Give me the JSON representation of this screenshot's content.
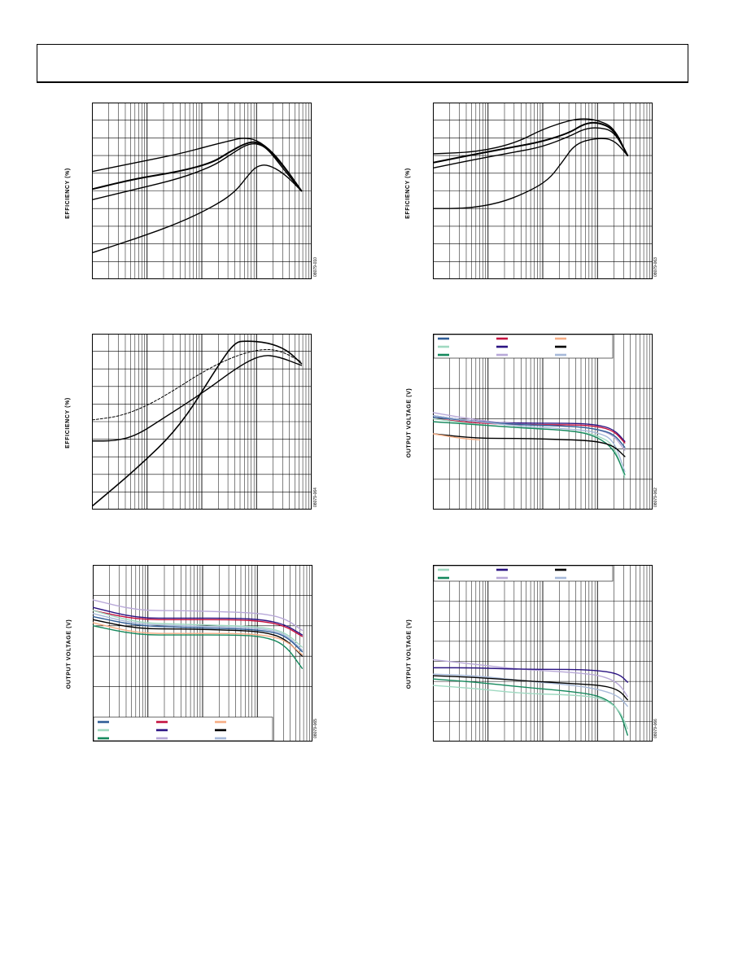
{
  "page": {
    "header": ""
  },
  "charts": [
    {
      "id": "panel-tl",
      "ylabel": "EFFICIENCY (%)",
      "fignum": "08079-010",
      "chart_data": {
        "type": "line",
        "x_scale": "log",
        "x_decades": 4,
        "ylim": [
          0,
          10
        ],
        "y_gridlines": 10,
        "grid": true,
        "series": [
          {
            "color": "#000000",
            "width": 1.4,
            "x": [
              0,
              0.8,
              1.6,
              2.2,
              2.6,
              2.75,
              3.0,
              3.3,
              3.6,
              3.82
            ],
            "y": [
              6.1,
              6.6,
              7.1,
              7.6,
              7.9,
              8.0,
              7.9,
              7.2,
              6.0,
              5.0
            ]
          },
          {
            "color": "#000000",
            "width": 2.0,
            "x": [
              0,
              0.8,
              1.6,
              2.2,
              2.5,
              2.8,
              3.0,
              3.2,
              3.5,
              3.82
            ],
            "y": [
              5.1,
              5.7,
              6.1,
              6.6,
              7.2,
              7.7,
              7.8,
              7.4,
              6.4,
              5.0
            ]
          },
          {
            "color": "#000000",
            "width": 1.4,
            "x": [
              0,
              0.8,
              1.6,
              2.2,
              2.5,
              2.8,
              3.0,
              3.2,
              3.5,
              3.82
            ],
            "y": [
              4.5,
              5.1,
              5.7,
              6.4,
              7.0,
              7.6,
              7.7,
              7.4,
              6.2,
              5.0
            ]
          },
          {
            "color": "#000000",
            "width": 1.4,
            "x": [
              0,
              0.8,
              1.6,
              2.2,
              2.6,
              2.85,
              3.0,
              3.2,
              3.5,
              3.82
            ],
            "y": [
              1.5,
              2.3,
              3.2,
              4.1,
              4.9,
              5.9,
              6.4,
              6.5,
              6.0,
              5.0
            ]
          }
        ]
      }
    },
    {
      "id": "panel-tr",
      "ylabel": "EFFICIENCY (%)",
      "fignum": "08079-063",
      "chart_data": {
        "type": "line",
        "x_scale": "log",
        "x_decades": 4,
        "ylim": [
          0,
          10
        ],
        "y_gridlines": 10,
        "grid": true,
        "series": [
          {
            "color": "#000000",
            "width": 1.4,
            "x": [
              0,
              0.8,
              1.5,
              2.0,
              2.5,
              2.75,
              3.0,
              3.3,
              3.55
            ],
            "y": [
              7.1,
              7.2,
              7.7,
              8.5,
              9.0,
              9.1,
              9.0,
              8.6,
              7.0
            ]
          },
          {
            "color": "#000000",
            "width": 2.0,
            "x": [
              0,
              0.8,
              1.5,
              2.0,
              2.5,
              2.75,
              3.0,
              3.3,
              3.55
            ],
            "y": [
              6.6,
              7.1,
              7.5,
              7.8,
              8.3,
              8.8,
              8.9,
              8.5,
              7.0
            ]
          },
          {
            "color": "#000000",
            "width": 1.4,
            "x": [
              0,
              0.8,
              1.5,
              2.0,
              2.5,
              2.75,
              3.0,
              3.3,
              3.55
            ],
            "y": [
              6.3,
              6.8,
              7.2,
              7.5,
              8.1,
              8.5,
              8.6,
              8.4,
              7.0
            ]
          },
          {
            "color": "#000000",
            "width": 1.4,
            "x": [
              0,
              0.6,
              1.2,
              1.7,
              2.1,
              2.35,
              2.6,
              3.0,
              3.3,
              3.55
            ],
            "y": [
              4.0,
              4.0,
              4.3,
              4.9,
              5.6,
              6.6,
              7.7,
              8.0,
              7.9,
              7.0
            ]
          }
        ]
      }
    },
    {
      "id": "panel-ml",
      "ylabel": "EFFICIENCY (%)",
      "fignum": "08079-064",
      "chart_data": {
        "type": "line",
        "x_scale": "log",
        "x_decades": 4,
        "ylim": [
          0,
          10
        ],
        "y_gridlines": 10,
        "grid": true,
        "series": [
          {
            "color": "#000000",
            "width": 1.6,
            "x": [
              0,
              0.8,
              1.6,
              2.3,
              2.6,
              2.8,
              3.2,
              3.55,
              3.82
            ],
            "y": [
              0.2,
              2.3,
              4.7,
              8.2,
              9.5,
              9.6,
              9.5,
              9.1,
              8.3
            ]
          },
          {
            "color": "#000000",
            "width": 1.0,
            "dash": "3,2",
            "x": [
              0,
              0.5,
              1.0,
              1.5,
              2.0,
              2.5,
              3.0,
              3.4,
              3.82
            ],
            "y": [
              5.1,
              5.3,
              5.9,
              6.8,
              7.8,
              8.6,
              9.1,
              9.1,
              8.4
            ]
          },
          {
            "color": "#000000",
            "width": 1.4,
            "x": [
              0,
              0.4,
              0.8,
              1.3,
              2.0,
              2.7,
              3.1,
              3.4,
              3.82
            ],
            "y": [
              3.9,
              3.9,
              4.2,
              5.2,
              6.6,
              8.2,
              8.8,
              8.7,
              8.2
            ]
          }
        ]
      }
    },
    {
      "id": "panel-mr",
      "ylabel": "OUTPUT VOLTAGE (V)",
      "fignum": "08079-062",
      "legend": {
        "position": "top",
        "entries": [
          {
            "color": "#2e5c96",
            "text": ""
          },
          {
            "color": "#c4103e",
            "text": ""
          },
          {
            "color": "#f6ad84",
            "text": ""
          },
          {
            "color": "#9fd9c1",
            "text": ""
          },
          {
            "color": "#2b1382",
            "text": ""
          },
          {
            "color": "#000000",
            "text": ""
          },
          {
            "color": "#14885c",
            "text": ""
          },
          {
            "color": "#b8a8d8",
            "text": ""
          },
          {
            "color": "#a6b9d9",
            "text": ""
          }
        ]
      },
      "chart_data": {
        "type": "line",
        "x_scale": "log",
        "x_decades": 4,
        "ylim": [
          0,
          10
        ],
        "y_gridlines": 5,
        "grid": true,
        "series": [
          {
            "color": "#2b1382",
            "width": 1.4,
            "x": [
              0,
              0.8,
              1.6,
              2.6,
              3.0,
              3.3,
              3.5
            ],
            "y": [
              6.2,
              5.8,
              5.7,
              5.7,
              5.6,
              5.3,
              4.5
            ]
          },
          {
            "color": "#c4103e",
            "width": 1.4,
            "x": [
              0,
              0.8,
              1.6,
              2.6,
              3.0,
              3.3,
              3.5
            ],
            "y": [
              6.0,
              5.7,
              5.6,
              5.6,
              5.5,
              5.2,
              4.4
            ]
          },
          {
            "color": "#b8a8d8",
            "width": 1.4,
            "x": [
              0,
              0.8,
              1.6,
              2.6,
              3.0,
              3.3,
              3.5
            ],
            "y": [
              6.4,
              5.9,
              5.6,
              5.5,
              5.3,
              4.9,
              3.9
            ]
          },
          {
            "color": "#2e5c96",
            "width": 1.4,
            "x": [
              0,
              0.8,
              1.6,
              2.6,
              3.0,
              3.3,
              3.5
            ],
            "y": [
              6.1,
              5.8,
              5.6,
              5.5,
              5.3,
              5.0,
              4.1
            ]
          },
          {
            "color": "#9fd9c1",
            "width": 1.4,
            "x": [
              0,
              0.8,
              1.6,
              2.6,
              3.0,
              3.3,
              3.5
            ],
            "y": [
              6.0,
              5.6,
              5.4,
              5.2,
              4.9,
              4.3,
              2.1
            ]
          },
          {
            "color": "#a6b9d9",
            "width": 1.4,
            "x": [
              0,
              0.8,
              1.6,
              2.6,
              3.0,
              3.3,
              3.5
            ],
            "y": [
              6.2,
              5.8,
              5.5,
              5.3,
              5.1,
              4.6,
              2.5
            ]
          },
          {
            "color": "#14885c",
            "width": 1.4,
            "x": [
              0,
              0.8,
              1.6,
              2.6,
              3.0,
              3.3,
              3.5
            ],
            "y": [
              5.8,
              5.6,
              5.4,
              5.2,
              4.8,
              4.0,
              2.3
            ]
          },
          {
            "color": "#000000",
            "width": 1.4,
            "x": [
              0,
              0.8,
              1.6,
              2.6,
              3.0,
              3.3,
              3.5
            ],
            "y": [
              5.0,
              4.7,
              4.7,
              4.6,
              4.5,
              4.2,
              3.5
            ]
          },
          {
            "color": "#f6ad84",
            "width": 1.4,
            "x": [
              0,
              0.5,
              0.85
            ],
            "y": [
              5.0,
              4.7,
              4.6
            ]
          }
        ]
      }
    },
    {
      "id": "panel-bl",
      "ylabel": "OUTPUT VOLTAGE (V)",
      "fignum": "08079-065",
      "legend": {
        "position": "bottom",
        "entries": [
          {
            "color": "#2e5c96",
            "text": ""
          },
          {
            "color": "#c4103e",
            "text": ""
          },
          {
            "color": "#f6ad84",
            "text": ""
          },
          {
            "color": "#9fd9c1",
            "text": ""
          },
          {
            "color": "#2b1382",
            "text": ""
          },
          {
            "color": "#000000",
            "text": ""
          },
          {
            "color": "#14885c",
            "text": ""
          },
          {
            "color": "#b8a8d8",
            "text": ""
          },
          {
            "color": "#a6b9d9",
            "text": ""
          }
        ]
      },
      "chart_data": {
        "type": "line",
        "x_scale": "log",
        "x_decades": 4,
        "ylim": [
          0,
          10
        ],
        "y_gridlines": 5,
        "grid": true,
        "series": [
          {
            "color": "#b8a8d8",
            "width": 1.4,
            "x": [
              0,
              0.8,
              1.6,
              2.6,
              3.1,
              3.5,
              3.82
            ],
            "y": [
              7.7,
              7.0,
              7.0,
              6.9,
              6.8,
              6.5,
              5.7
            ]
          },
          {
            "color": "#2b1382",
            "width": 1.4,
            "x": [
              0,
              0.8,
              1.6,
              2.6,
              3.1,
              3.5,
              3.82
            ],
            "y": [
              7.2,
              6.5,
              6.5,
              6.5,
              6.4,
              6.1,
              5.4
            ]
          },
          {
            "color": "#c4103e",
            "width": 1.4,
            "x": [
              0,
              0.8,
              1.6,
              2.6,
              3.1,
              3.5,
              3.82
            ],
            "y": [
              7.0,
              6.4,
              6.4,
              6.4,
              6.3,
              6.0,
              5.3
            ]
          },
          {
            "color": "#9fd9c1",
            "width": 1.4,
            "x": [
              0,
              0.8,
              1.6,
              2.6,
              3.1,
              3.5,
              3.82
            ],
            "y": [
              7.0,
              6.2,
              6.1,
              6.0,
              5.9,
              5.6,
              4.6
            ]
          },
          {
            "color": "#a6b9d9",
            "width": 1.4,
            "x": [
              0,
              0.8,
              1.6,
              2.6,
              3.1,
              3.5,
              3.82
            ],
            "y": [
              6.8,
              6.1,
              6.0,
              5.9,
              5.8,
              5.5,
              4.4
            ]
          },
          {
            "color": "#2e5c96",
            "width": 1.4,
            "x": [
              0,
              0.8,
              1.6,
              2.6,
              3.1,
              3.5,
              3.82
            ],
            "y": [
              6.6,
              6.0,
              5.9,
              5.8,
              5.7,
              5.4,
              4.3
            ]
          },
          {
            "color": "#000000",
            "width": 1.4,
            "x": [
              0,
              0.8,
              1.6,
              2.6,
              3.1,
              3.5,
              3.82
            ],
            "y": [
              6.4,
              5.8,
              5.8,
              5.7,
              5.6,
              5.2,
              4.0
            ]
          },
          {
            "color": "#f6ad84",
            "width": 1.4,
            "x": [
              0,
              0.8,
              1.6,
              2.6,
              3.1,
              3.5,
              3.82
            ],
            "y": [
              6.2,
              5.5,
              5.5,
              5.5,
              5.4,
              5.1,
              4.1
            ]
          },
          {
            "color": "#14885c",
            "width": 1.4,
            "x": [
              0,
              0.8,
              1.6,
              2.6,
              3.1,
              3.5,
              3.82
            ],
            "y": [
              6.0,
              5.4,
              5.4,
              5.4,
              5.3,
              4.8,
              3.2
            ]
          }
        ]
      }
    },
    {
      "id": "panel-br",
      "ylabel": "OUTPUT VOLTAGE (V)",
      "fignum": "08079-066",
      "legend": {
        "position": "top",
        "entries": [
          {
            "color": "#9fd9c1",
            "text": ""
          },
          {
            "color": "#2b1382",
            "text": ""
          },
          {
            "color": "#000000",
            "text": ""
          },
          {
            "color": "#14885c",
            "text": ""
          },
          {
            "color": "#b8a8d8",
            "text": ""
          },
          {
            "color": "#a6b9d9",
            "text": ""
          }
        ]
      },
      "chart_data": {
        "type": "line",
        "x_scale": "log",
        "x_decades": 4,
        "ylim": [
          0,
          10
        ],
        "y_gridlines": 8,
        "grid": true,
        "series": [
          {
            "color": "#b8a8d8",
            "width": 1.4,
            "x": [
              0,
              0.8,
              1.6,
              2.6,
              3.1,
              3.4,
              3.55
            ],
            "y": [
              5.1,
              4.8,
              4.5,
              4.3,
              4.1,
              3.6,
              2.8
            ]
          },
          {
            "color": "#2b1382",
            "width": 1.4,
            "x": [
              0,
              0.8,
              1.6,
              2.6,
              3.1,
              3.4,
              3.55
            ],
            "y": [
              4.6,
              4.6,
              4.5,
              4.5,
              4.4,
              4.2,
              3.7
            ]
          },
          {
            "color": "#a6b9d9",
            "width": 1.4,
            "x": [
              0,
              0.8,
              1.6,
              2.6,
              3.1,
              3.4,
              3.55
            ],
            "y": [
              4.2,
              4.1,
              3.8,
              3.5,
              3.2,
              2.8,
              2.2
            ]
          },
          {
            "color": "#000000",
            "width": 1.4,
            "x": [
              0,
              0.8,
              1.6,
              2.6,
              3.1,
              3.4,
              3.55
            ],
            "y": [
              4.1,
              4.0,
              3.8,
              3.6,
              3.5,
              3.2,
              2.6
            ]
          },
          {
            "color": "#14885c",
            "width": 1.4,
            "x": [
              0,
              0.8,
              1.6,
              2.6,
              3.1,
              3.4,
              3.55
            ],
            "y": [
              3.9,
              3.7,
              3.4,
              3.1,
              2.8,
              2.0,
              0.4
            ]
          },
          {
            "color": "#9fd9c1",
            "width": 1.4,
            "x": [
              0,
              0.8,
              1.6,
              2.6,
              3.1,
              3.4,
              3.55
            ],
            "y": [
              3.5,
              3.3,
              3.0,
              2.9,
              2.7,
              2.0,
              0.8
            ]
          }
        ]
      }
    }
  ]
}
